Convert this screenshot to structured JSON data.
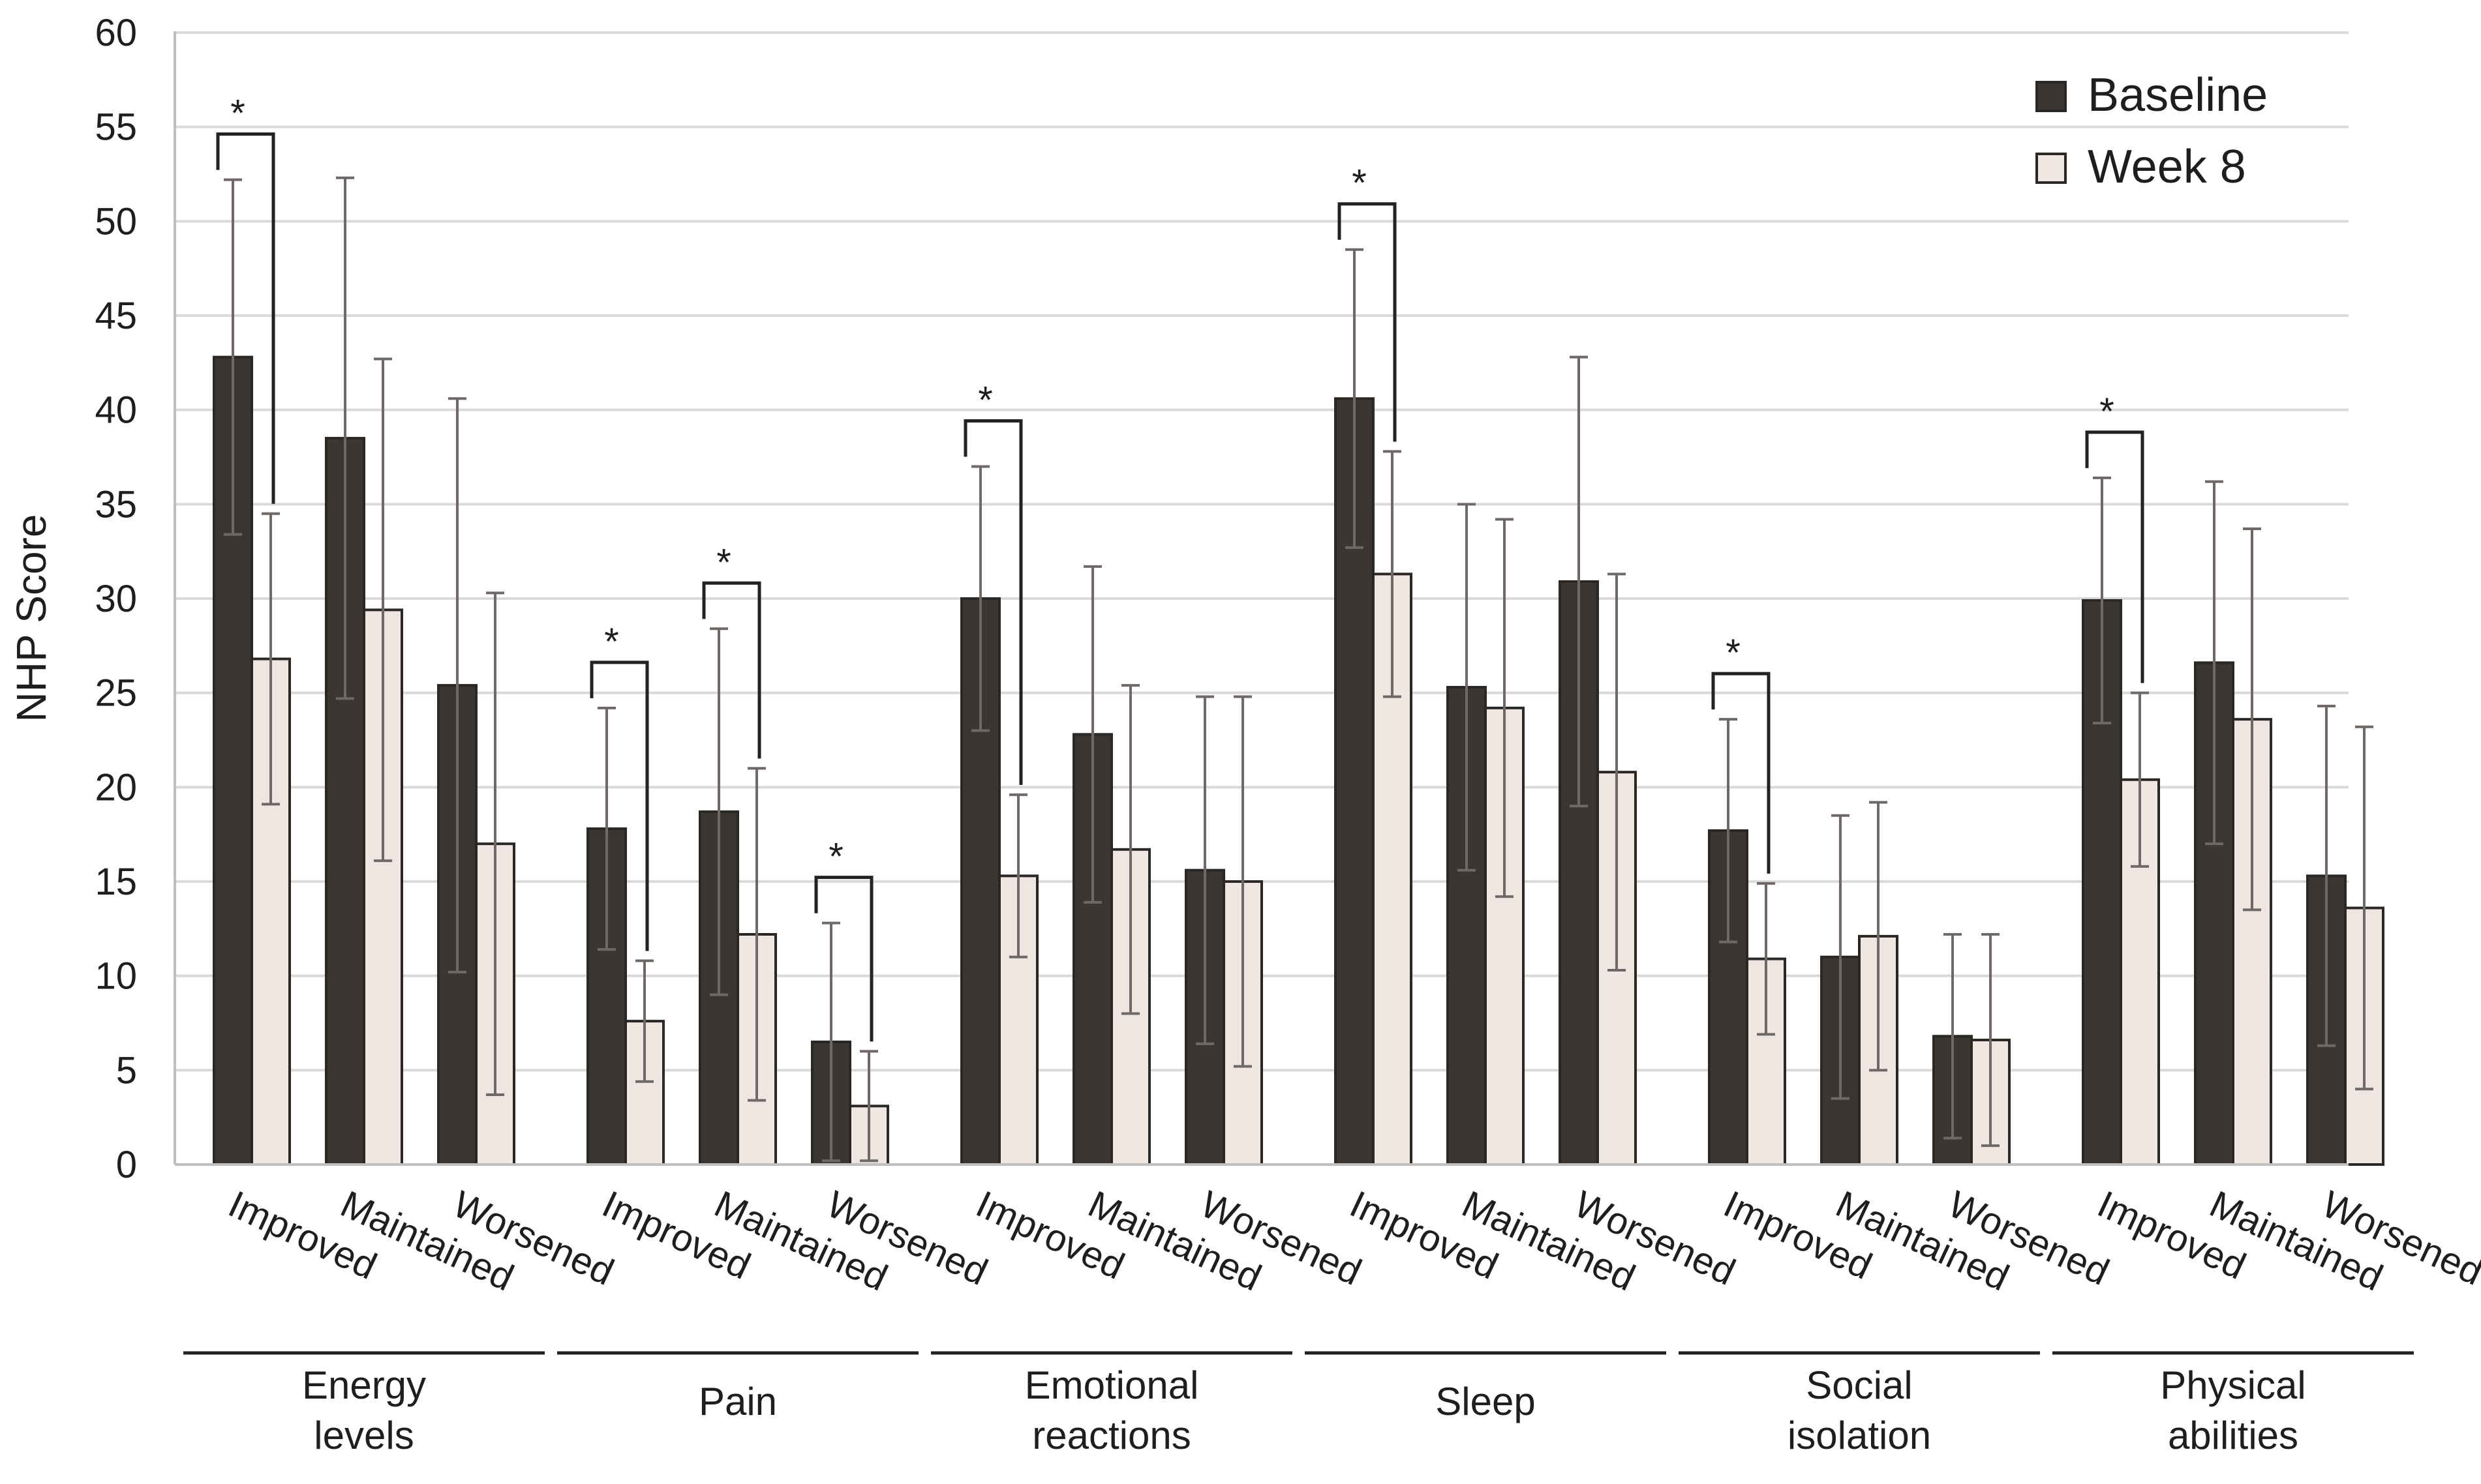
{
  "chart_data": {
    "type": "bar",
    "ylabel": "NHP Score",
    "ylim": [
      0,
      60
    ],
    "yticks": [
      0,
      5,
      10,
      15,
      20,
      25,
      30,
      35,
      40,
      45,
      50,
      55,
      60
    ],
    "grid": true,
    "legend_position": "top-right",
    "colors": {
      "Baseline": "#3a3632",
      "Week 8": "#efe6e1",
      "bar_edge": "#2a2724",
      "error_bar": "#6e6966",
      "gridline": "#d9d9d9",
      "bracket": "#222222"
    },
    "series_names": [
      "Baseline",
      "Week 8"
    ],
    "significance_marker": "*",
    "groups": [
      {
        "name_lines": [
          "Energy",
          "levels"
        ],
        "categories": [
          "Improved",
          "Maintained",
          "Worsened"
        ],
        "baseline": [
          42.8,
          38.5,
          25.4
        ],
        "baseline_err": [
          9.4,
          13.8,
          15.2
        ],
        "week8": [
          26.8,
          29.4,
          17.0
        ],
        "week8_err": [
          7.7,
          13.3,
          13.3
        ],
        "significant": [
          true,
          false,
          false
        ]
      },
      {
        "name_lines": [
          "Pain"
        ],
        "categories": [
          "Improved",
          "Maintained",
          "Worsened"
        ],
        "baseline": [
          17.8,
          18.7,
          6.5
        ],
        "baseline_err": [
          6.4,
          9.7,
          6.3
        ],
        "week8": [
          7.6,
          12.2,
          3.1
        ],
        "week8_err": [
          3.2,
          8.8,
          2.9
        ],
        "significant": [
          true,
          true,
          true
        ]
      },
      {
        "name_lines": [
          "Emotional",
          "reactions"
        ],
        "categories": [
          "Improved",
          "Maintained",
          "Worsened"
        ],
        "baseline": [
          30.0,
          22.8,
          15.6
        ],
        "baseline_err": [
          7.0,
          8.9,
          9.2
        ],
        "week8": [
          15.3,
          16.7,
          15.0
        ],
        "week8_err": [
          4.3,
          8.7,
          9.8
        ],
        "significant": [
          true,
          false,
          false
        ]
      },
      {
        "name_lines": [
          "Sleep"
        ],
        "categories": [
          "Improved",
          "Maintained",
          "Worsened"
        ],
        "baseline": [
          40.6,
          25.3,
          30.9
        ],
        "baseline_err": [
          7.9,
          9.7,
          11.9
        ],
        "week8": [
          31.3,
          24.2,
          20.8
        ],
        "week8_err": [
          6.5,
          10.0,
          10.5
        ],
        "significant": [
          true,
          false,
          false
        ]
      },
      {
        "name_lines": [
          "Social",
          "isolation"
        ],
        "categories": [
          "Improved",
          "Maintained",
          "Worsened"
        ],
        "baseline": [
          17.7,
          11.0,
          6.8
        ],
        "baseline_err": [
          5.9,
          7.5,
          5.4
        ],
        "week8": [
          10.9,
          12.1,
          6.6
        ],
        "week8_err": [
          4.0,
          7.1,
          5.6
        ],
        "significant": [
          true,
          false,
          false
        ]
      },
      {
        "name_lines": [
          "Physical",
          "abilities"
        ],
        "categories": [
          "Improved",
          "Maintained",
          "Worsened"
        ],
        "baseline": [
          29.9,
          26.6,
          15.3
        ],
        "baseline_err": [
          6.5,
          9.6,
          9.0
        ],
        "week8": [
          20.4,
          23.6,
          13.6
        ],
        "week8_err": [
          4.6,
          10.1,
          9.6
        ],
        "significant": [
          true,
          false,
          false
        ]
      }
    ]
  }
}
